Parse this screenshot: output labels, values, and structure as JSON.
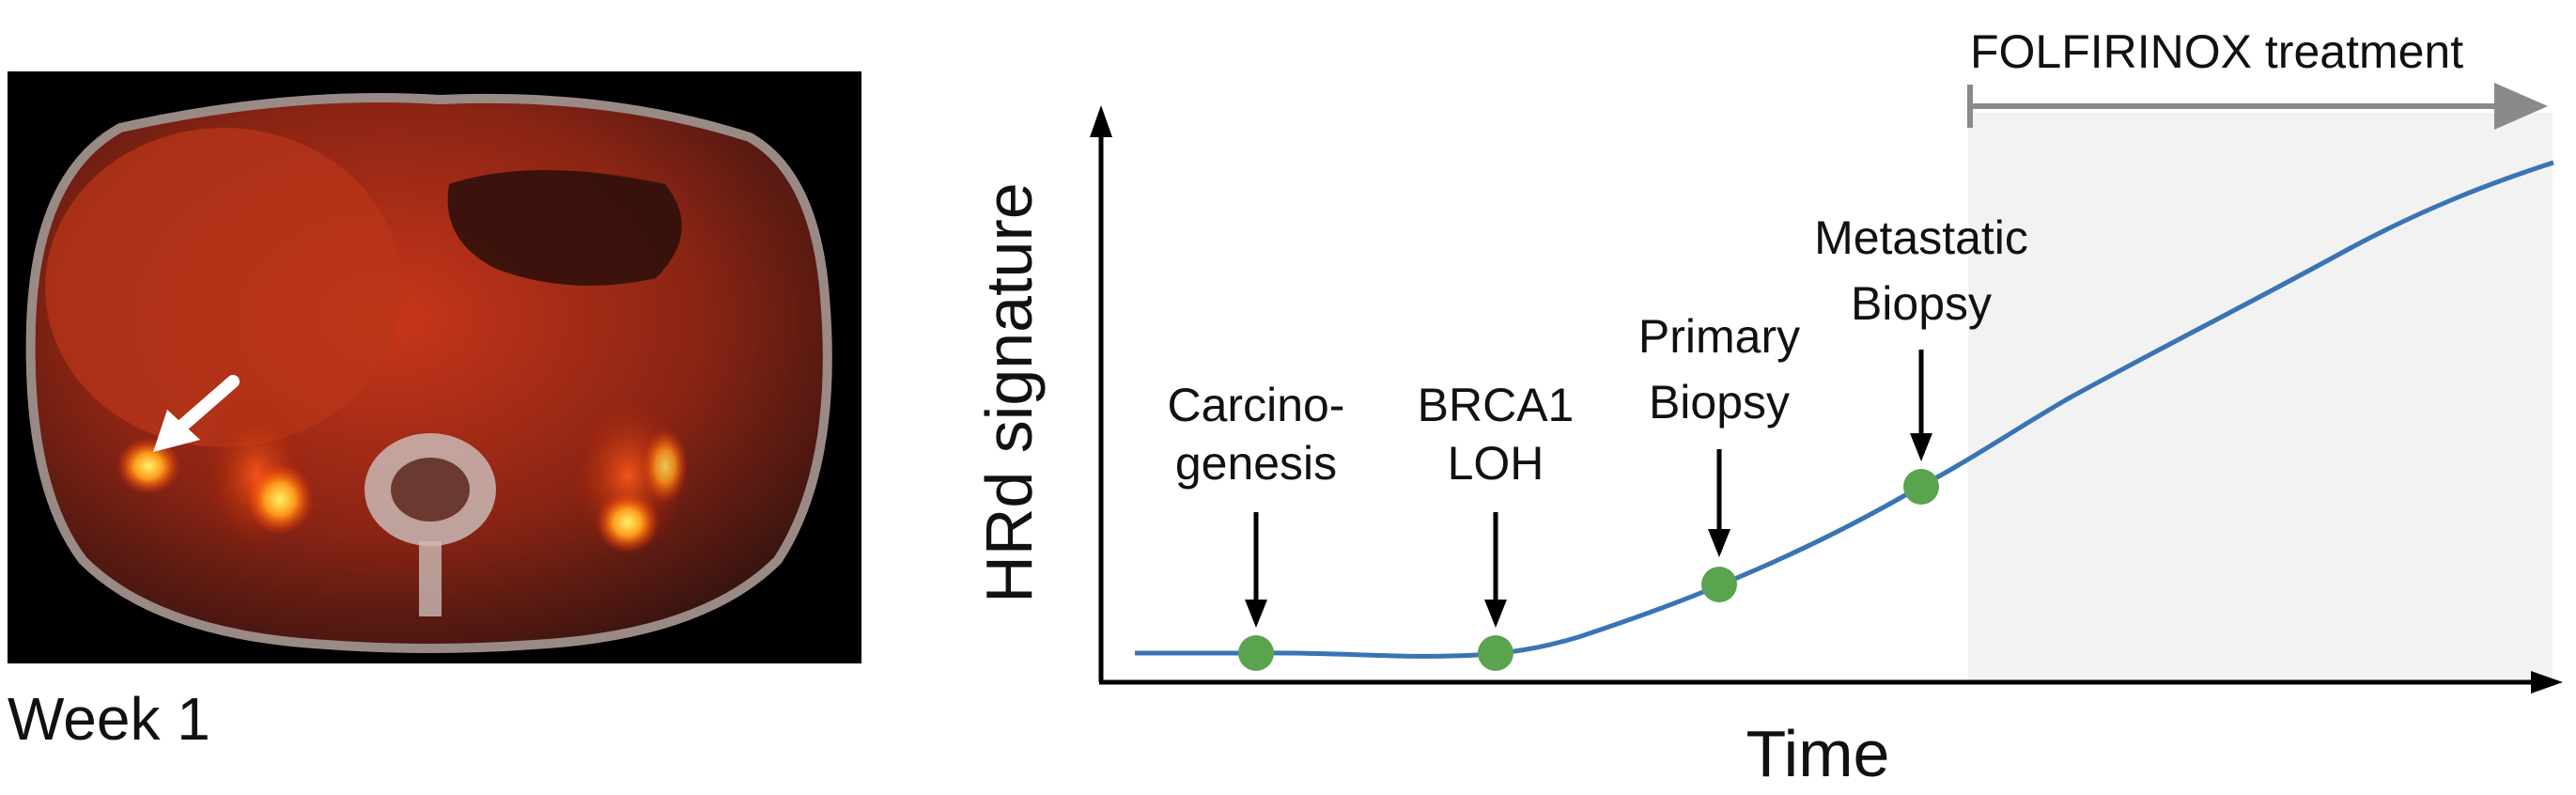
{
  "scan": {
    "caption": "Week 1",
    "pointer": "white-arrow-icon"
  },
  "diagram": {
    "xlabel": "Time",
    "ylabel": "HRd signature",
    "treatment": {
      "label": "FOLFIRINOX treatment",
      "color": "#8a8a8a",
      "shade": "#f2f2f2"
    },
    "curve_color": "#3a74b4",
    "marker_color": "#5aa34f",
    "events": [
      {
        "id": "carcinogenesis",
        "lines": [
          "Carcino-",
          "genesis"
        ]
      },
      {
        "id": "brca1-loh",
        "lines": [
          "BRCA1",
          "LOH"
        ]
      },
      {
        "id": "primary-biopsy",
        "lines": [
          "Primary",
          "Biopsy"
        ]
      },
      {
        "id": "metastatic-biopsy",
        "lines": [
          "Metastatic",
          "Biopsy"
        ]
      }
    ]
  }
}
